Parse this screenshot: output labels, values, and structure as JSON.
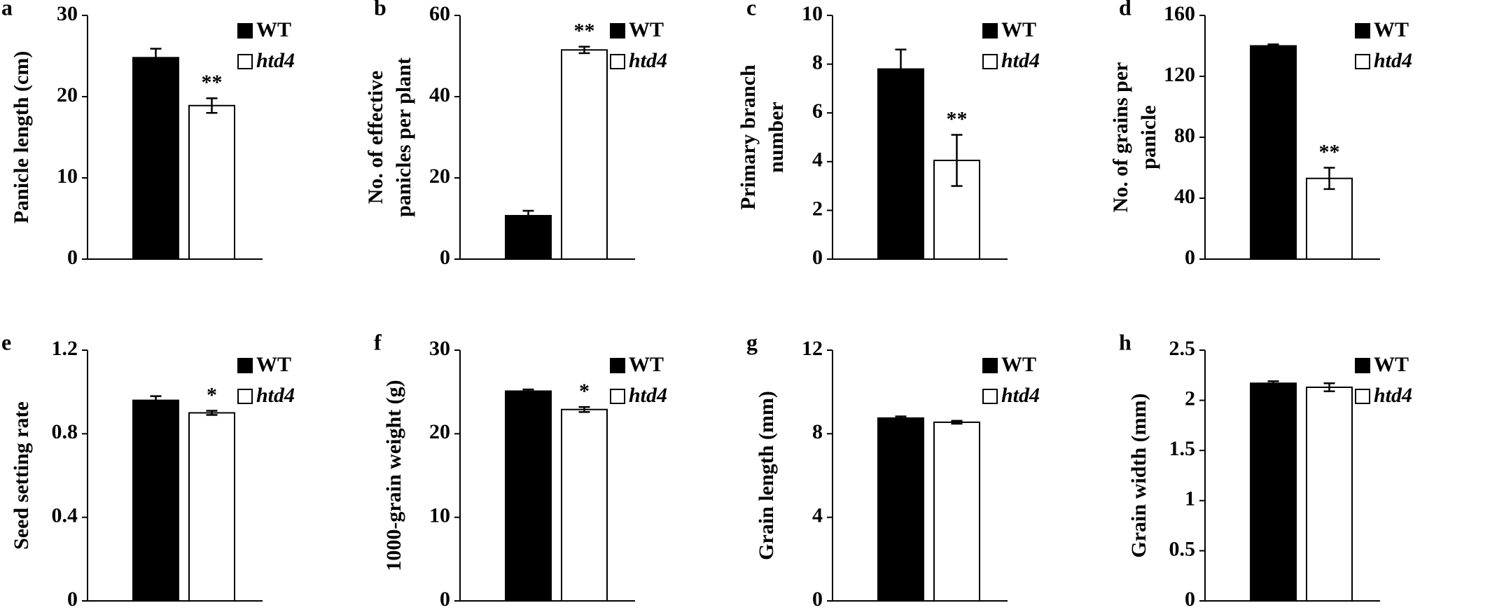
{
  "chart_data": [
    {
      "type": "bar",
      "panel": "a",
      "ylabel": [
        "Panicle length (cm)"
      ],
      "ylim": [
        0,
        30
      ],
      "yticks": [
        0,
        10,
        20,
        30
      ],
      "series": [
        {
          "name": "WT",
          "color": "#000000",
          "values": [
            24.8
          ],
          "errors": [
            1.1
          ],
          "annotations": [
            null
          ]
        },
        {
          "name": "htd4",
          "color": "#ffffff",
          "values": [
            18.9
          ],
          "errors": [
            0.9
          ],
          "annotations": [
            "**"
          ]
        }
      ]
    },
    {
      "type": "bar",
      "panel": "b",
      "ylabel": [
        "No. of  effective",
        "panicles per plant"
      ],
      "ylim": [
        0,
        60
      ],
      "yticks": [
        0,
        20,
        40,
        60
      ],
      "series": [
        {
          "name": "WT",
          "color": "#000000",
          "values": [
            10.7
          ],
          "errors": [
            1.2
          ],
          "annotations": [
            null
          ]
        },
        {
          "name": "htd4",
          "color": "#ffffff",
          "values": [
            51.5
          ],
          "errors": [
            0.8
          ],
          "annotations": [
            "**"
          ]
        }
      ]
    },
    {
      "type": "bar",
      "panel": "c",
      "ylabel": [
        "Primary  branch",
        "number"
      ],
      "ylim": [
        0,
        10
      ],
      "yticks": [
        0,
        2,
        4,
        6,
        8,
        10
      ],
      "series": [
        {
          "name": "WT",
          "color": "#000000",
          "values": [
            7.8
          ],
          "errors": [
            0.8
          ],
          "annotations": [
            null
          ]
        },
        {
          "name": "htd4",
          "color": "#ffffff",
          "values": [
            4.05
          ],
          "errors": [
            1.05
          ],
          "annotations": [
            "**"
          ]
        }
      ]
    },
    {
      "type": "bar",
      "panel": "d",
      "ylabel": [
        "No. of grains per",
        "panicle"
      ],
      "ylim": [
        0,
        160
      ],
      "yticks": [
        0,
        40,
        80,
        120,
        160
      ],
      "series": [
        {
          "name": "WT",
          "color": "#000000",
          "values": [
            140
          ],
          "errors": [
            1
          ],
          "annotations": [
            null
          ]
        },
        {
          "name": "htd4",
          "color": "#ffffff",
          "values": [
            53
          ],
          "errors": [
            7
          ],
          "annotations": [
            "**"
          ]
        }
      ]
    },
    {
      "type": "bar",
      "panel": "e",
      "ylabel": [
        "Seed setting rate"
      ],
      "ylim": [
        0,
        1.2
      ],
      "yticks": [
        0,
        0.4,
        0.8,
        1.2
      ],
      "series": [
        {
          "name": "WT",
          "color": "#000000",
          "values": [
            0.96
          ],
          "errors": [
            0.02
          ],
          "annotations": [
            null
          ]
        },
        {
          "name": "htd4",
          "color": "#ffffff",
          "values": [
            0.9
          ],
          "errors": [
            0.01
          ],
          "annotations": [
            "*"
          ]
        }
      ]
    },
    {
      "type": "bar",
      "panel": "f",
      "ylabel": [
        "1000-grain weight (g)"
      ],
      "ylim": [
        0,
        30
      ],
      "yticks": [
        0,
        10,
        20,
        30
      ],
      "series": [
        {
          "name": "WT",
          "color": "#000000",
          "values": [
            25.1
          ],
          "errors": [
            0.2
          ],
          "annotations": [
            null
          ]
        },
        {
          "name": "htd4",
          "color": "#ffffff",
          "values": [
            22.9
          ],
          "errors": [
            0.3
          ],
          "annotations": [
            "*"
          ]
        }
      ]
    },
    {
      "type": "bar",
      "panel": "g",
      "ylabel": [
        "Grain length (mm)"
      ],
      "ylim": [
        0,
        12
      ],
      "yticks": [
        0,
        4,
        8,
        12
      ],
      "series": [
        {
          "name": "WT",
          "color": "#000000",
          "values": [
            8.75
          ],
          "errors": [
            0.08
          ],
          "annotations": [
            null
          ]
        },
        {
          "name": "htd4",
          "color": "#ffffff",
          "values": [
            8.55
          ],
          "errors": [
            0.07
          ],
          "annotations": [
            null
          ]
        }
      ]
    },
    {
      "type": "bar",
      "panel": "h",
      "ylabel": [
        "Grain width (mm)"
      ],
      "ylim": [
        0,
        2.5
      ],
      "yticks": [
        0,
        0.5,
        1,
        1.5,
        2,
        2.5
      ],
      "series": [
        {
          "name": "WT",
          "color": "#000000",
          "values": [
            2.17
          ],
          "errors": [
            0.02
          ],
          "annotations": [
            null
          ]
        },
        {
          "name": "htd4",
          "color": "#ffffff",
          "values": [
            2.13
          ],
          "errors": [
            0.04
          ],
          "annotations": [
            null
          ]
        }
      ]
    }
  ]
}
